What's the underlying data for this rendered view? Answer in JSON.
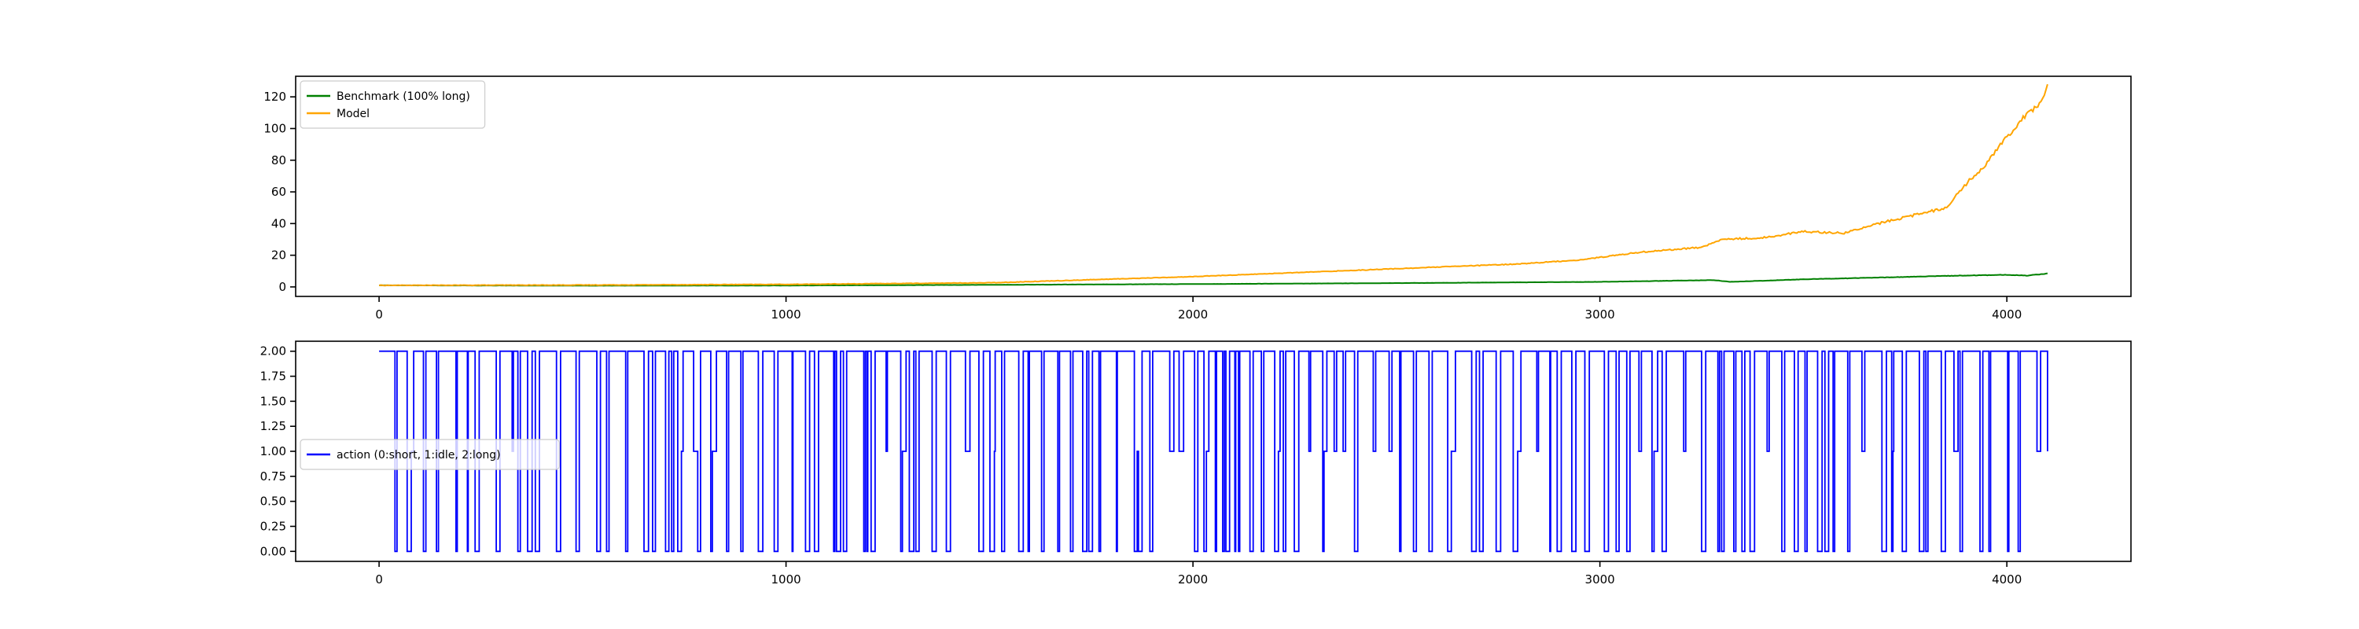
{
  "chart_data": [
    {
      "type": "line",
      "title": "",
      "xlabel": "",
      "ylabel": "",
      "xlim": [
        -205,
        4305
      ],
      "ylim": [
        -6,
        133
      ],
      "xticks": [
        0,
        1000,
        2000,
        3000,
        4000
      ],
      "yticks": [
        0,
        20,
        40,
        60,
        80,
        100,
        120
      ],
      "grid": false,
      "legend_position": "upper-left",
      "series": [
        {
          "name": "Benchmark (100% long)",
          "color": "#008000",
          "points": [
            [
              0,
              1.0
            ],
            [
              500,
              0.8
            ],
            [
              1000,
              0.9
            ],
            [
              1500,
              1.3
            ],
            [
              2000,
              1.8
            ],
            [
              2500,
              2.4
            ],
            [
              3000,
              3.2
            ],
            [
              3280,
              4.3
            ],
            [
              3320,
              3.2
            ],
            [
              3500,
              4.8
            ],
            [
              3800,
              6.6
            ],
            [
              3900,
              7.2
            ],
            [
              4000,
              7.6
            ],
            [
              4050,
              7.2
            ],
            [
              4100,
              8.5
            ]
          ]
        },
        {
          "name": "Model",
          "color": "#ffa500",
          "points": [
            [
              0,
              1.0
            ],
            [
              500,
              1.2
            ],
            [
              1000,
              1.6
            ],
            [
              1500,
              2.6
            ],
            [
              2000,
              6.5
            ],
            [
              2200,
              8.5
            ],
            [
              2500,
              11.5
            ],
            [
              2800,
              14.5
            ],
            [
              2950,
              17
            ],
            [
              3100,
              22
            ],
            [
              3250,
              25
            ],
            [
              3300,
              30
            ],
            [
              3400,
              31
            ],
            [
              3500,
              35
            ],
            [
              3600,
              34
            ],
            [
              3700,
              41
            ],
            [
              3800,
              47
            ],
            [
              3850,
              50
            ],
            [
              3900,
              65
            ],
            [
              3950,
              78
            ],
            [
              4000,
              95
            ],
            [
              4050,
              110
            ],
            [
              4080,
              115
            ],
            [
              4100,
              127
            ]
          ]
        }
      ]
    },
    {
      "type": "line",
      "title": "",
      "xlabel": "",
      "ylabel": "",
      "xlim": [
        -205,
        4305
      ],
      "ylim": [
        -0.1,
        2.1
      ],
      "xticks": [
        0,
        1000,
        2000,
        3000,
        4000
      ],
      "yticks": [
        0.0,
        0.25,
        0.5,
        0.75,
        1.0,
        1.25,
        1.5,
        1.75,
        2.0
      ],
      "ytick_labels": [
        "0.00",
        "0.25",
        "0.50",
        "0.75",
        "1.00",
        "1.25",
        "1.50",
        "1.75",
        "2.00"
      ],
      "grid": false,
      "legend_position": "center-left",
      "series": [
        {
          "name": "action (0:short, 1:idle, 2:long)",
          "color": "#0000ff",
          "value_range": [
            0,
            2
          ],
          "x_range": [
            0,
            4100
          ]
        }
      ]
    }
  ]
}
